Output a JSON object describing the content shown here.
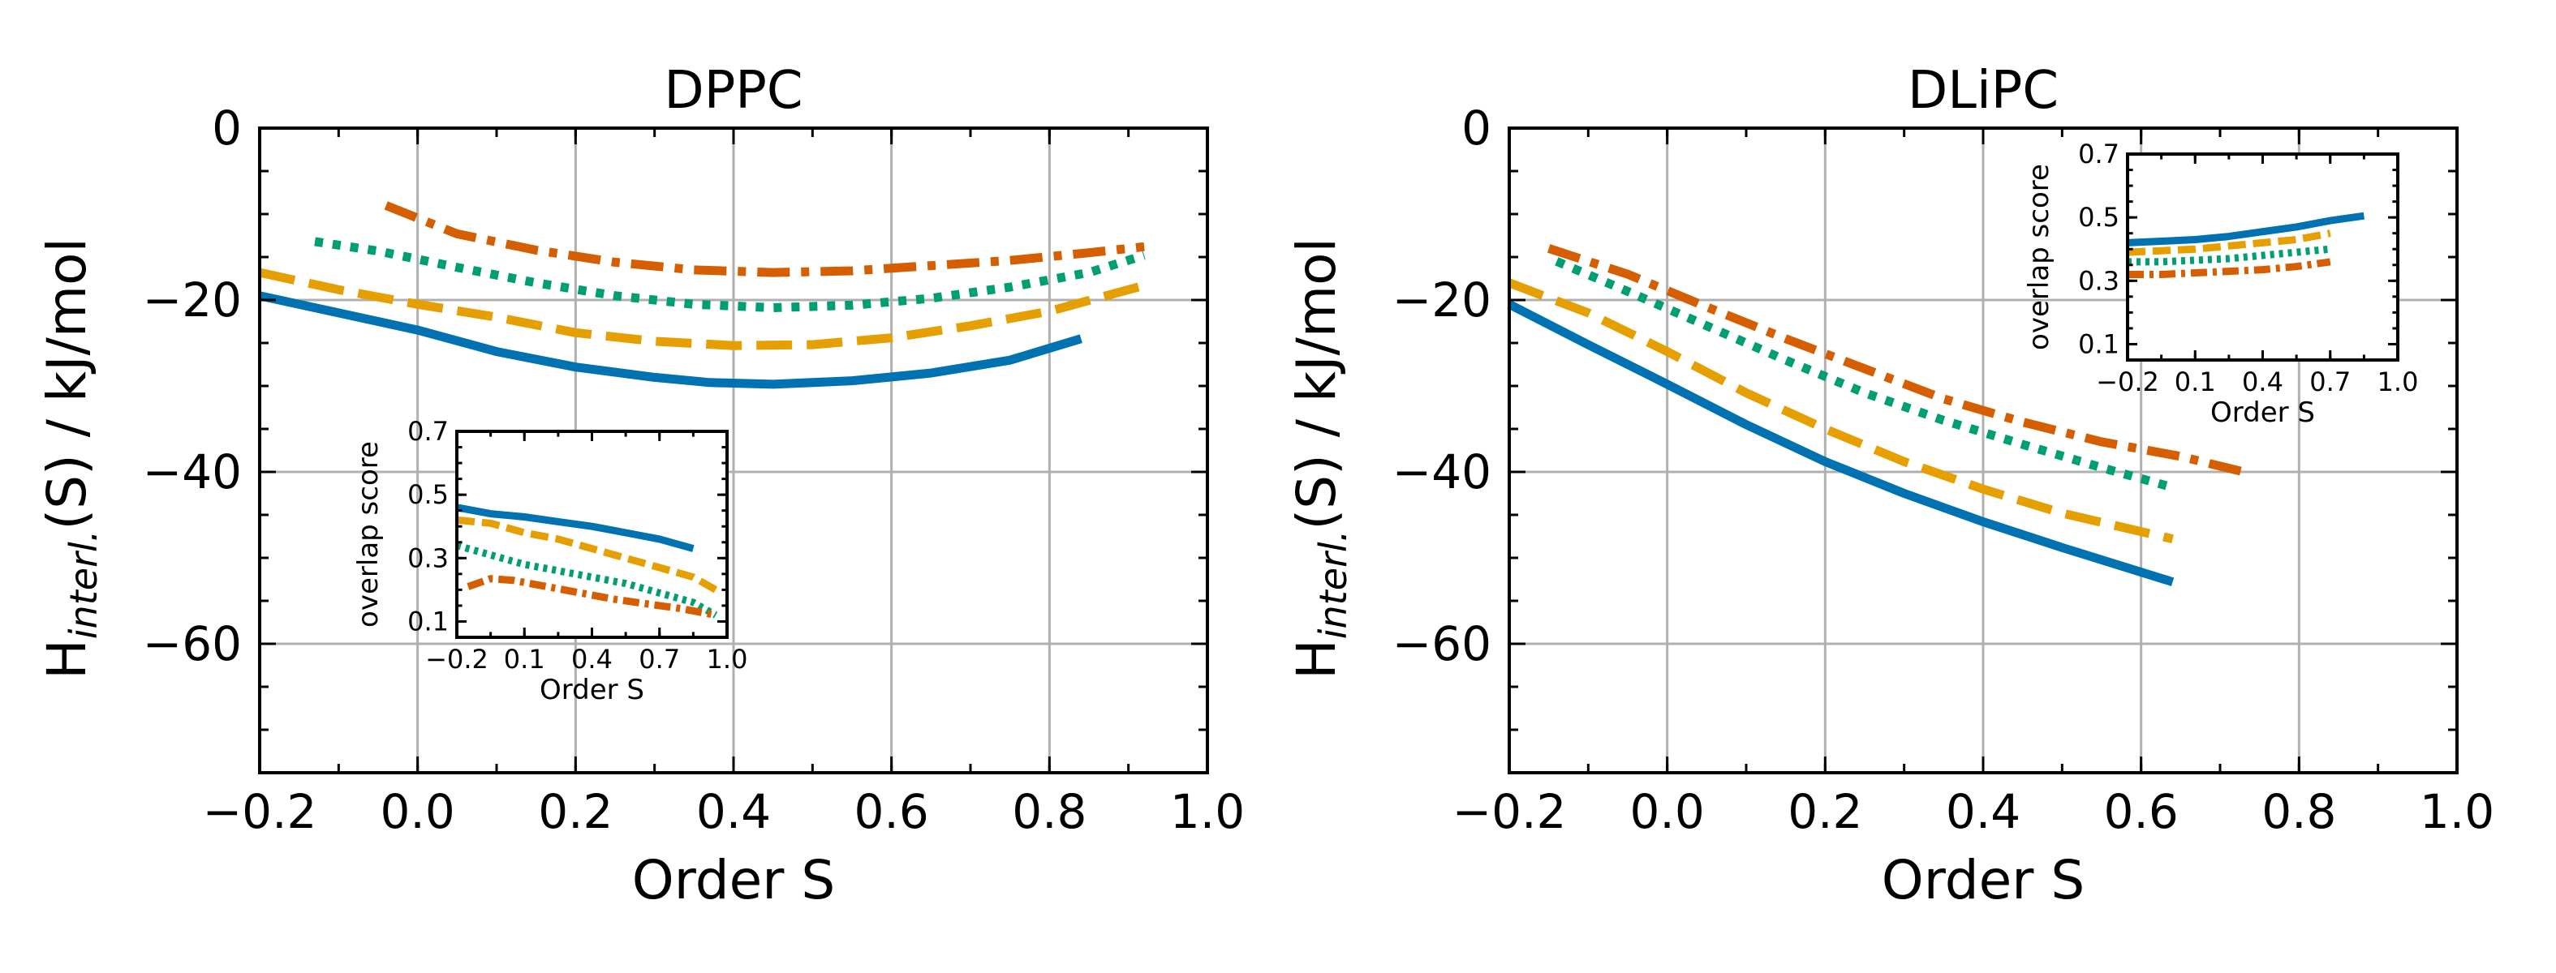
{
  "colors": {
    "blue": "#0072B2",
    "orange": "#E69F00",
    "green": "#009E73",
    "vermillion": "#D55E00"
  },
  "chart_data": [
    {
      "type": "line",
      "title": "DPPC",
      "xlabel": "Order S",
      "ylabel": "H",
      "ylabel_sub": "interl.",
      "ylabel_rest": "(S) / kJ/mol",
      "xlim": [
        -0.2,
        1.0
      ],
      "ylim": [
        -75,
        0
      ],
      "xticks": [
        -0.2,
        0.0,
        0.2,
        0.4,
        0.6,
        0.8,
        1.0
      ],
      "xtick_labels": [
        "−0.2",
        "0.0",
        "0.2",
        "0.4",
        "0.6",
        "0.8",
        "1.0"
      ],
      "yticks": [
        0,
        -20,
        -40,
        -60
      ],
      "ytick_labels": [
        "0",
        "−20",
        "−40",
        "−60"
      ],
      "grid": true,
      "series": [
        {
          "color": "blue",
          "dash": "solid",
          "x": [
            -0.2,
            -0.1,
            0.0,
            0.1,
            0.2,
            0.3,
            0.37,
            0.45,
            0.55,
            0.65,
            0.75,
            0.84
          ],
          "y": [
            -19.5,
            -21.5,
            -23.5,
            -26.0,
            -27.8,
            -29.0,
            -29.6,
            -29.8,
            -29.4,
            -28.5,
            -27.0,
            -24.5
          ]
        },
        {
          "color": "orange",
          "dash": "dashed",
          "x": [
            -0.2,
            -0.1,
            0.0,
            0.1,
            0.2,
            0.3,
            0.4,
            0.5,
            0.6,
            0.7,
            0.8,
            0.92
          ],
          "y": [
            -16.8,
            -18.8,
            -20.5,
            -22.0,
            -23.8,
            -24.8,
            -25.3,
            -25.2,
            -24.4,
            -23.0,
            -21.3,
            -18.3
          ]
        },
        {
          "color": "green",
          "dash": "dotted",
          "x": [
            -0.13,
            -0.05,
            0.05,
            0.15,
            0.25,
            0.35,
            0.45,
            0.55,
            0.65,
            0.75,
            0.85,
            0.92
          ],
          "y": [
            -13.2,
            -14.3,
            -16.2,
            -18.0,
            -19.5,
            -20.5,
            -20.9,
            -20.6,
            -19.8,
            -18.5,
            -16.8,
            -14.8
          ]
        },
        {
          "color": "vermillion",
          "dash": "dashdot",
          "x": [
            -0.04,
            0.05,
            0.15,
            0.25,
            0.35,
            0.45,
            0.55,
            0.65,
            0.75,
            0.85,
            0.92
          ],
          "y": [
            -9.0,
            -12.3,
            -14.2,
            -15.6,
            -16.5,
            -16.8,
            -16.6,
            -16.0,
            -15.4,
            -14.5,
            -13.8
          ]
        }
      ],
      "inset": {
        "xlabel": "Order S",
        "ylabel": "overlap score",
        "xlim": [
          -0.2,
          1.0
        ],
        "ylim": [
          0.05,
          0.7
        ],
        "xticks": [
          -0.2,
          0.1,
          0.4,
          0.7,
          1.0
        ],
        "xtick_labels": [
          "−0.2",
          "0.1",
          "0.4",
          "0.7",
          "1.0"
        ],
        "yticks": [
          0.1,
          0.3,
          0.5,
          0.7
        ],
        "ytick_labels": [
          "0.1",
          "0.3",
          "0.5",
          "0.7"
        ],
        "series": [
          {
            "color": "blue",
            "dash": "solid",
            "x": [
              -0.2,
              -0.05,
              0.1,
              0.25,
              0.4,
              0.55,
              0.7,
              0.85
            ],
            "y": [
              0.46,
              0.44,
              0.43,
              0.415,
              0.4,
              0.38,
              0.36,
              0.33
            ]
          },
          {
            "color": "orange",
            "dash": "dashed",
            "x": [
              -0.2,
              -0.05,
              0.1,
              0.25,
              0.4,
              0.55,
              0.7,
              0.85,
              0.95
            ],
            "y": [
              0.42,
              0.41,
              0.38,
              0.36,
              0.33,
              0.3,
              0.27,
              0.24,
              0.2
            ]
          },
          {
            "color": "green",
            "dash": "dotted",
            "x": [
              -0.2,
              -0.05,
              0.1,
              0.25,
              0.4,
              0.55,
              0.7,
              0.85,
              0.95
            ],
            "y": [
              0.34,
              0.31,
              0.28,
              0.26,
              0.24,
              0.22,
              0.19,
              0.16,
              0.12
            ]
          },
          {
            "color": "vermillion",
            "dash": "dashdot",
            "x": [
              -0.15,
              -0.05,
              0.05,
              0.2,
              0.35,
              0.5,
              0.65,
              0.8,
              0.95
            ],
            "y": [
              0.21,
              0.235,
              0.23,
              0.21,
              0.19,
              0.17,
              0.155,
              0.14,
              0.12
            ]
          }
        ]
      }
    },
    {
      "type": "line",
      "title": "DLiPC",
      "xlabel": "Order S",
      "ylabel": "H",
      "ylabel_sub": "interl.",
      "ylabel_rest": "(S) / kJ/mol",
      "xlim": [
        -0.2,
        1.0
      ],
      "ylim": [
        -75,
        0
      ],
      "xticks": [
        -0.2,
        0.0,
        0.2,
        0.4,
        0.6,
        0.8,
        1.0
      ],
      "xtick_labels": [
        "−0.2",
        "0.0",
        "0.2",
        "0.4",
        "0.6",
        "0.8",
        "1.0"
      ],
      "yticks": [
        0,
        -20,
        -40,
        -60
      ],
      "ytick_labels": [
        "0",
        "−20",
        "−40",
        "−60"
      ],
      "grid": true,
      "series": [
        {
          "color": "blue",
          "dash": "solid",
          "x": [
            -0.2,
            -0.1,
            0.0,
            0.1,
            0.2,
            0.3,
            0.4,
            0.5,
            0.64
          ],
          "y": [
            -20.5,
            -25.2,
            -29.8,
            -34.5,
            -38.8,
            -42.5,
            -45.8,
            -48.8,
            -52.8
          ]
        },
        {
          "color": "orange",
          "dash": "dashed",
          "x": [
            -0.2,
            -0.1,
            0.0,
            0.1,
            0.2,
            0.3,
            0.4,
            0.5,
            0.64
          ],
          "y": [
            -18.0,
            -21.5,
            -26.0,
            -30.8,
            -35.0,
            -38.8,
            -42.0,
            -44.8,
            -47.8
          ]
        },
        {
          "color": "green",
          "dash": "dotted",
          "x": [
            -0.14,
            -0.05,
            0.05,
            0.15,
            0.25,
            0.35,
            0.45,
            0.55,
            0.64
          ],
          "y": [
            -15.5,
            -19.0,
            -23.0,
            -27.0,
            -30.8,
            -34.0,
            -36.8,
            -39.5,
            -41.8
          ]
        },
        {
          "color": "vermillion",
          "dash": "dashdot",
          "x": [
            -0.15,
            -0.05,
            0.05,
            0.15,
            0.25,
            0.35,
            0.45,
            0.55,
            0.65,
            0.73
          ],
          "y": [
            -14.0,
            -17.0,
            -20.8,
            -24.5,
            -28.0,
            -31.5,
            -34.2,
            -36.5,
            -38.2,
            -40.0
          ]
        }
      ],
      "inset": {
        "xlabel": "Order S",
        "ylabel": "overlap score",
        "xlim": [
          -0.2,
          1.0
        ],
        "ylim": [
          0.05,
          0.7
        ],
        "xticks": [
          -0.2,
          0.1,
          0.4,
          0.7,
          1.0
        ],
        "xtick_labels": [
          "−0.2",
          "0.1",
          "0.4",
          "0.7",
          "1.0"
        ],
        "yticks": [
          0.1,
          0.3,
          0.5,
          0.7
        ],
        "ytick_labels": [
          "0.1",
          "0.3",
          "0.5",
          "0.7"
        ],
        "series": [
          {
            "color": "blue",
            "dash": "solid",
            "x": [
              -0.2,
              -0.05,
              0.1,
              0.25,
              0.4,
              0.55,
              0.7,
              0.85
            ],
            "y": [
              0.42,
              0.425,
              0.43,
              0.44,
              0.455,
              0.47,
              0.49,
              0.505
            ]
          },
          {
            "color": "orange",
            "dash": "dashed",
            "x": [
              -0.2,
              -0.05,
              0.1,
              0.25,
              0.4,
              0.55,
              0.7
            ],
            "y": [
              0.39,
              0.395,
              0.4,
              0.41,
              0.42,
              0.43,
              0.45
            ]
          },
          {
            "color": "green",
            "dash": "dotted",
            "x": [
              -0.2,
              -0.05,
              0.1,
              0.25,
              0.4,
              0.55,
              0.7
            ],
            "y": [
              0.36,
              0.36,
              0.365,
              0.37,
              0.38,
              0.39,
              0.4
            ]
          },
          {
            "color": "vermillion",
            "dash": "dashdot",
            "x": [
              -0.2,
              -0.05,
              0.1,
              0.25,
              0.4,
              0.55,
              0.7
            ],
            "y": [
              0.32,
              0.32,
              0.325,
              0.33,
              0.335,
              0.345,
              0.36
            ]
          }
        ]
      }
    }
  ]
}
